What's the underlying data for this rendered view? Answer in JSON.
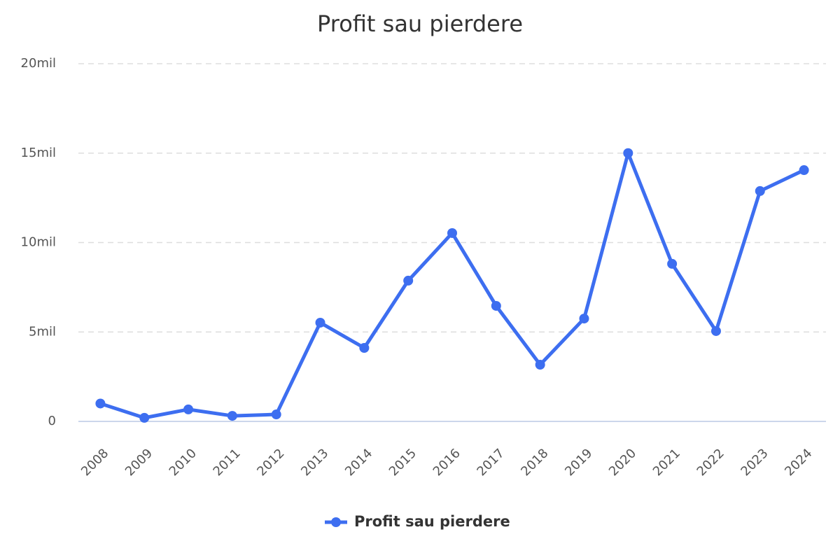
{
  "chart_data": {
    "type": "line",
    "title": "Profit sau pierdere",
    "categories": [
      "2008",
      "2009",
      "2010",
      "2011",
      "2012",
      "2013",
      "2014",
      "2015",
      "2016",
      "2017",
      "2018",
      "2019",
      "2020",
      "2021",
      "2022",
      "2023",
      "2024"
    ],
    "series": [
      {
        "name": "Profit sau pierdere",
        "color": "#3d6ef0",
        "values": [
          1000000,
          200000,
          670000,
          310000,
          390000,
          5520000,
          4110000,
          7870000,
          10530000,
          6460000,
          3170000,
          5750000,
          15000000,
          8810000,
          5050000,
          12880000,
          14050000
        ]
      }
    ],
    "ylim": [
      0,
      20000000
    ],
    "yticks": [
      0,
      {
        "value": 5000000,
        "label": "5mil"
      },
      {
        "value": 10000000,
        "label": "10mil"
      },
      {
        "value": 15000000,
        "label": "15mil"
      },
      {
        "value": 20000000,
        "label": "20mil"
      }
    ],
    "grid": true,
    "legend": "bottom"
  }
}
